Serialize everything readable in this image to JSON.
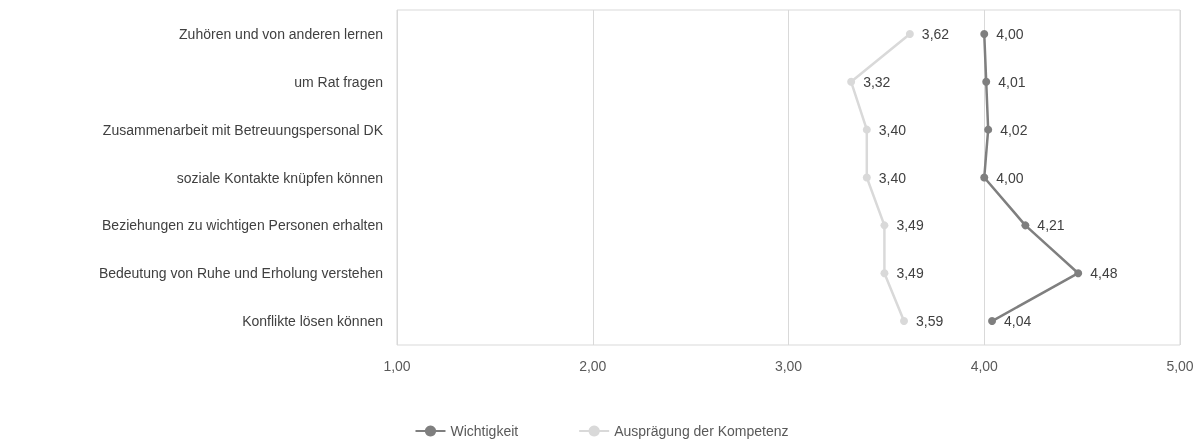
{
  "chart_data": {
    "type": "line",
    "orientation": "horizontal",
    "categories": [
      "Zuhören und von anderen lernen",
      "um Rat fragen",
      "Zusammenarbeit mit Betreuungspersonal DK",
      "soziale Kontakte knüpfen können",
      "Beziehungen zu wichtigen Personen erhalten",
      "Bedeutung von Ruhe und Erholung verstehen",
      "Konflikte lösen können"
    ],
    "series": [
      {
        "name": "Wichtigkeit",
        "color": "#7f7f7f",
        "values": [
          4.0,
          4.01,
          4.02,
          4.0,
          4.21,
          4.48,
          4.04
        ],
        "value_labels": [
          "4,00",
          "4,01",
          "4,02",
          "4,00",
          "4,21",
          "4,48",
          "4,04"
        ]
      },
      {
        "name": "Ausprägung der Kompetenz",
        "color": "#d9d9d9",
        "values": [
          3.62,
          3.32,
          3.4,
          3.4,
          3.49,
          3.49,
          3.59
        ],
        "value_labels": [
          "3,62",
          "3,32",
          "3,40",
          "3,40",
          "3,49",
          "3,49",
          "3,59"
        ]
      }
    ],
    "xlim": [
      1,
      5
    ],
    "xticks": [
      {
        "value": 1,
        "label": "1,00"
      },
      {
        "value": 2,
        "label": "2,00"
      },
      {
        "value": 3,
        "label": "3,00"
      },
      {
        "value": 4,
        "label": "4,00"
      },
      {
        "value": 5,
        "label": "5,00"
      }
    ],
    "grid": "x",
    "legend": "bottom",
    "marker": "circle",
    "line_style": "solid"
  }
}
